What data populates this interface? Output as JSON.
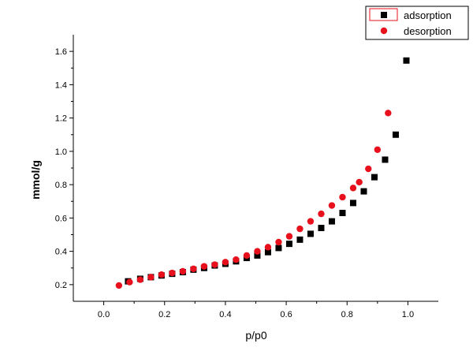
{
  "chart_data": {
    "type": "scatter",
    "xlabel": "p/p0",
    "ylabel": "mmol/g",
    "xlim": [
      -0.1,
      1.1
    ],
    "ylim": [
      0.1,
      1.7
    ],
    "x_ticks": [
      0.0,
      0.2,
      0.4,
      0.6,
      0.8,
      1.0
    ],
    "y_ticks": [
      0.2,
      0.4,
      0.6,
      0.8,
      1.0,
      1.2,
      1.4,
      1.6
    ],
    "x_tick_labels": [
      "0.0",
      "0.2",
      "0.4",
      "0.6",
      "0.8",
      "1.0"
    ],
    "y_tick_labels": [
      "0.2",
      "0.4",
      "0.6",
      "0.8",
      "1.0",
      "1.2",
      "1.4",
      "1.6"
    ],
    "legend_position": "top-right",
    "series": [
      {
        "name": "adsorption",
        "marker": "square",
        "color": "#000000",
        "points": [
          {
            "x": 0.08,
            "y": 0.22
          },
          {
            "x": 0.12,
            "y": 0.235
          },
          {
            "x": 0.155,
            "y": 0.245
          },
          {
            "x": 0.19,
            "y": 0.255
          },
          {
            "x": 0.225,
            "y": 0.265
          },
          {
            "x": 0.26,
            "y": 0.275
          },
          {
            "x": 0.295,
            "y": 0.29
          },
          {
            "x": 0.33,
            "y": 0.3
          },
          {
            "x": 0.365,
            "y": 0.315
          },
          {
            "x": 0.4,
            "y": 0.325
          },
          {
            "x": 0.435,
            "y": 0.34
          },
          {
            "x": 0.47,
            "y": 0.36
          },
          {
            "x": 0.505,
            "y": 0.375
          },
          {
            "x": 0.54,
            "y": 0.395
          },
          {
            "x": 0.575,
            "y": 0.42
          },
          {
            "x": 0.61,
            "y": 0.445
          },
          {
            "x": 0.645,
            "y": 0.47
          },
          {
            "x": 0.68,
            "y": 0.505
          },
          {
            "x": 0.715,
            "y": 0.54
          },
          {
            "x": 0.75,
            "y": 0.58
          },
          {
            "x": 0.785,
            "y": 0.63
          },
          {
            "x": 0.82,
            "y": 0.69
          },
          {
            "x": 0.855,
            "y": 0.76
          },
          {
            "x": 0.89,
            "y": 0.845
          },
          {
            "x": 0.925,
            "y": 0.95
          },
          {
            "x": 0.96,
            "y": 1.1
          },
          {
            "x": 0.995,
            "y": 1.545
          }
        ]
      },
      {
        "name": "desorption",
        "marker": "circle",
        "color": "#e8101c",
        "points": [
          {
            "x": 0.05,
            "y": 0.195
          },
          {
            "x": 0.085,
            "y": 0.215
          },
          {
            "x": 0.12,
            "y": 0.23
          },
          {
            "x": 0.155,
            "y": 0.245
          },
          {
            "x": 0.19,
            "y": 0.26
          },
          {
            "x": 0.225,
            "y": 0.27
          },
          {
            "x": 0.26,
            "y": 0.28
          },
          {
            "x": 0.295,
            "y": 0.295
          },
          {
            "x": 0.33,
            "y": 0.31
          },
          {
            "x": 0.365,
            "y": 0.32
          },
          {
            "x": 0.4,
            "y": 0.335
          },
          {
            "x": 0.435,
            "y": 0.35
          },
          {
            "x": 0.47,
            "y": 0.375
          },
          {
            "x": 0.505,
            "y": 0.4
          },
          {
            "x": 0.54,
            "y": 0.425
          },
          {
            "x": 0.575,
            "y": 0.455
          },
          {
            "x": 0.61,
            "y": 0.49
          },
          {
            "x": 0.645,
            "y": 0.535
          },
          {
            "x": 0.68,
            "y": 0.58
          },
          {
            "x": 0.715,
            "y": 0.625
          },
          {
            "x": 0.75,
            "y": 0.675
          },
          {
            "x": 0.785,
            "y": 0.725
          },
          {
            "x": 0.82,
            "y": 0.78
          },
          {
            "x": 0.84,
            "y": 0.815
          },
          {
            "x": 0.87,
            "y": 0.895
          },
          {
            "x": 0.9,
            "y": 1.01
          },
          {
            "x": 0.935,
            "y": 1.23
          }
        ]
      }
    ]
  }
}
